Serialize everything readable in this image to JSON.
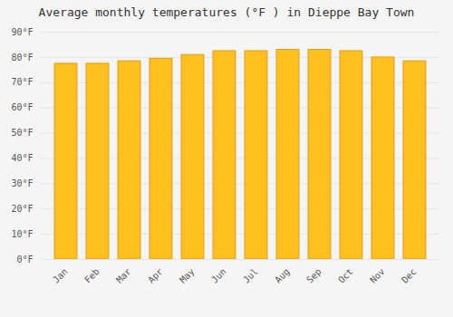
{
  "chart_data": {
    "type": "bar",
    "title": "Average monthly temperatures (°F ) in Dieppe Bay Town",
    "categories": [
      "Jan",
      "Feb",
      "Mar",
      "Apr",
      "May",
      "Jun",
      "Jul",
      "Aug",
      "Sep",
      "Oct",
      "Nov",
      "Dec"
    ],
    "values": [
      77.5,
      77.5,
      78.5,
      79.5,
      81.0,
      82.5,
      82.5,
      83.0,
      83.0,
      82.5,
      80.0,
      78.5
    ],
    "color": "#FFC020",
    "ylim": [
      0,
      90
    ],
    "yticks": [
      {
        "value": 0,
        "label": "0°F"
      },
      {
        "value": 10,
        "label": "10°F"
      },
      {
        "value": 20,
        "label": "20°F"
      },
      {
        "value": 30,
        "label": "30°F"
      },
      {
        "value": 40,
        "label": "40°F"
      },
      {
        "value": 50,
        "label": "50°F"
      },
      {
        "value": 60,
        "label": "60°F"
      },
      {
        "value": 70,
        "label": "70°F"
      },
      {
        "value": 80,
        "label": "80°F"
      },
      {
        "value": 90,
        "label": "90°F"
      }
    ],
    "grid": true
  }
}
